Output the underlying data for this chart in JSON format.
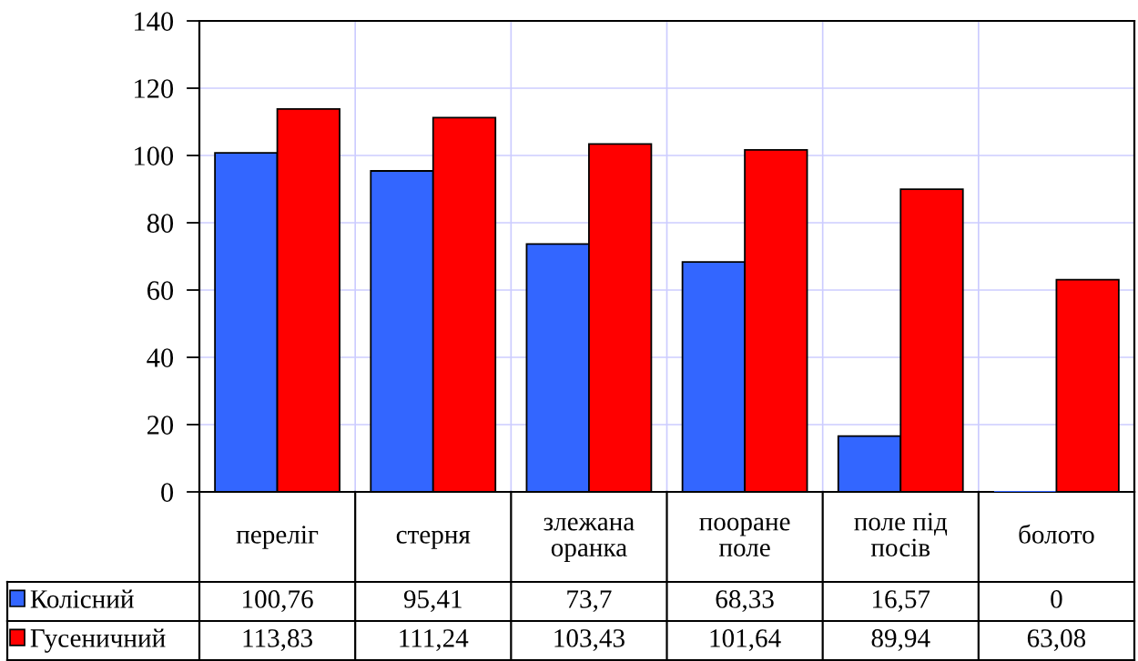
{
  "chart_data": {
    "type": "bar",
    "categories": [
      "переліг",
      "стерня",
      "злежана\nоранка",
      "пооране\nполе",
      "поле під\nпосів",
      "болото"
    ],
    "series": [
      {
        "name": "Колісний",
        "color": "#3366ff",
        "values": [
          100.76,
          95.41,
          73.7,
          68.33,
          16.57,
          0
        ],
        "value_labels": [
          "100,76",
          "95,41",
          "73,7",
          "68,33",
          "16,57",
          "0"
        ]
      },
      {
        "name": "Гусеничний",
        "color": "#ff0000",
        "values": [
          113.83,
          111.24,
          103.43,
          101.64,
          89.94,
          63.08
        ],
        "value_labels": [
          "113,83",
          "111,24",
          "103,43",
          "101,64",
          "89,94",
          "63,08"
        ]
      }
    ],
    "ylim": [
      0,
      140
    ],
    "yticks": [
      0,
      20,
      40,
      60,
      80,
      100,
      120,
      140
    ],
    "grid": true,
    "legend": "bottom left"
  }
}
